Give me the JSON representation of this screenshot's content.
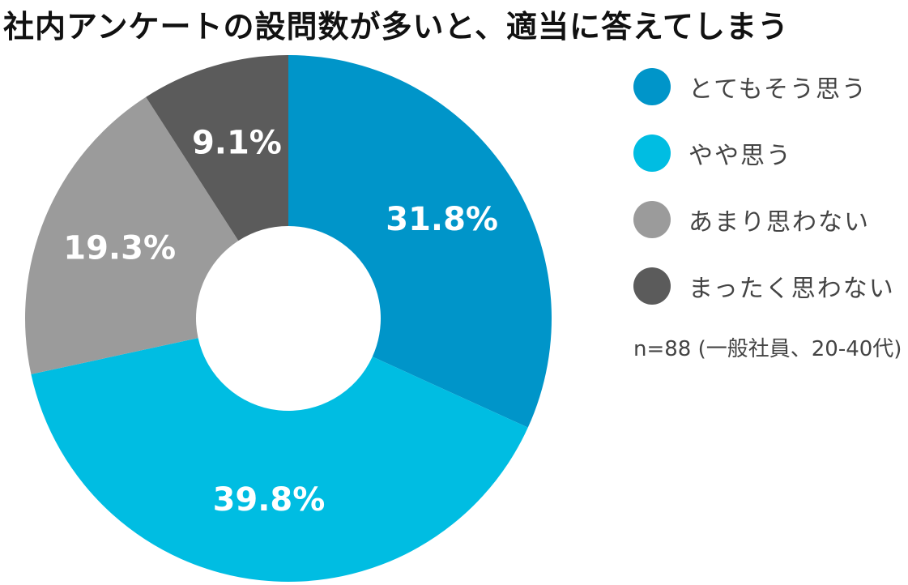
{
  "chart_data": {
    "type": "pie",
    "variant": "donut",
    "title": "社内アンケートの設問数が多いと、適当に答えてしまう",
    "categories": [
      "とてもそう思う",
      "やや思う",
      "あまり思わない",
      "まったく思わない"
    ],
    "values": [
      31.8,
      39.8,
      19.3,
      9.1
    ],
    "value_labels": [
      "31.8%",
      "39.8%",
      "19.3%",
      "9.1%"
    ],
    "colors": [
      "#0095c9",
      "#00bde2",
      "#9b9b9b",
      "#5b5b5b"
    ],
    "legend_position": "right",
    "note": "n=88 (一般社員、20-40代)"
  }
}
